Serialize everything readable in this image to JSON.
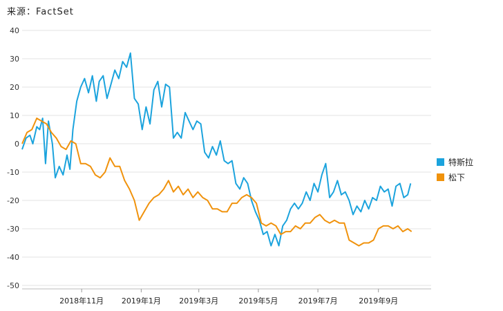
{
  "source": "来源：FactSet",
  "chart_data": {
    "type": "line",
    "source": "来源：FactSet",
    "ylim": [
      -50,
      40
    ],
    "yticks": [
      40,
      30,
      20,
      10,
      0,
      -10,
      -20,
      -30,
      -40,
      -50
    ],
    "xlim": [
      "2018-09-01",
      "2019-10-25"
    ],
    "xticks": [
      {
        "date": "2018-11-01",
        "label": "2018年11月"
      },
      {
        "date": "2019-01-01",
        "label": "2019年1月"
      },
      {
        "date": "2019-03-01",
        "label": "2019年3月"
      },
      {
        "date": "2019-05-01",
        "label": "2019年5月"
      },
      {
        "date": "2019-07-01",
        "label": "2019年7月"
      },
      {
        "date": "2019-09-01",
        "label": "2019年9月"
      }
    ],
    "grid": true,
    "legend_position": "right",
    "series": [
      {
        "name": "特斯拉",
        "color": "#1ba3dd",
        "points": [
          [
            "2018-09-01",
            -2
          ],
          [
            "2018-09-05",
            2
          ],
          [
            "2018-09-09",
            3
          ],
          [
            "2018-09-12",
            0
          ],
          [
            "2018-09-16",
            6
          ],
          [
            "2018-09-19",
            5
          ],
          [
            "2018-09-22",
            9
          ],
          [
            "2018-09-25",
            -7
          ],
          [
            "2018-09-28",
            8
          ],
          [
            "2018-10-02",
            0
          ],
          [
            "2018-10-05",
            -12
          ],
          [
            "2018-10-09",
            -8
          ],
          [
            "2018-10-13",
            -11
          ],
          [
            "2018-10-17",
            -4
          ],
          [
            "2018-10-20",
            -9
          ],
          [
            "2018-10-23",
            5
          ],
          [
            "2018-10-27",
            15
          ],
          [
            "2018-10-31",
            20
          ],
          [
            "2018-11-04",
            23
          ],
          [
            "2018-11-08",
            18
          ],
          [
            "2018-11-12",
            24
          ],
          [
            "2018-11-16",
            15
          ],
          [
            "2018-11-19",
            22
          ],
          [
            "2018-11-23",
            24
          ],
          [
            "2018-11-27",
            16
          ],
          [
            "2018-12-01",
            21
          ],
          [
            "2018-12-05",
            26
          ],
          [
            "2018-12-09",
            23
          ],
          [
            "2018-12-13",
            29
          ],
          [
            "2018-12-17",
            27
          ],
          [
            "2018-12-21",
            32
          ],
          [
            "2018-12-25",
            16
          ],
          [
            "2018-12-29",
            14
          ],
          [
            "2019-01-02",
            5
          ],
          [
            "2019-01-06",
            13
          ],
          [
            "2019-01-10",
            7
          ],
          [
            "2019-01-14",
            19
          ],
          [
            "2019-01-18",
            22
          ],
          [
            "2019-01-22",
            13
          ],
          [
            "2019-01-26",
            21
          ],
          [
            "2019-01-30",
            20
          ],
          [
            "2019-02-03",
            2
          ],
          [
            "2019-02-07",
            4
          ],
          [
            "2019-02-11",
            2
          ],
          [
            "2019-02-15",
            11
          ],
          [
            "2019-02-19",
            8
          ],
          [
            "2019-02-23",
            5
          ],
          [
            "2019-02-27",
            8
          ],
          [
            "2019-03-03",
            7
          ],
          [
            "2019-03-07",
            -3
          ],
          [
            "2019-03-11",
            -5
          ],
          [
            "2019-03-15",
            -1
          ],
          [
            "2019-03-19",
            -4
          ],
          [
            "2019-03-23",
            1
          ],
          [
            "2019-03-27",
            -6
          ],
          [
            "2019-03-31",
            -7
          ],
          [
            "2019-04-04",
            -6
          ],
          [
            "2019-04-08",
            -14
          ],
          [
            "2019-04-12",
            -16
          ],
          [
            "2019-04-16",
            -12
          ],
          [
            "2019-04-20",
            -14
          ],
          [
            "2019-04-24",
            -20
          ],
          [
            "2019-04-28",
            -24
          ],
          [
            "2019-05-02",
            -27
          ],
          [
            "2019-05-06",
            -32
          ],
          [
            "2019-05-10",
            -31
          ],
          [
            "2019-05-14",
            -36
          ],
          [
            "2019-05-18",
            -32
          ],
          [
            "2019-05-22",
            -36
          ],
          [
            "2019-05-26",
            -29
          ],
          [
            "2019-05-30",
            -27
          ],
          [
            "2019-06-03",
            -23
          ],
          [
            "2019-06-07",
            -21
          ],
          [
            "2019-06-11",
            -23
          ],
          [
            "2019-06-15",
            -21
          ],
          [
            "2019-06-19",
            -17
          ],
          [
            "2019-06-23",
            -20
          ],
          [
            "2019-06-27",
            -14
          ],
          [
            "2019-07-01",
            -17
          ],
          [
            "2019-07-05",
            -11
          ],
          [
            "2019-07-09",
            -7
          ],
          [
            "2019-07-13",
            -19
          ],
          [
            "2019-07-17",
            -17
          ],
          [
            "2019-07-21",
            -13
          ],
          [
            "2019-07-25",
            -18
          ],
          [
            "2019-07-29",
            -17
          ],
          [
            "2019-08-02",
            -20
          ],
          [
            "2019-08-06",
            -25
          ],
          [
            "2019-08-10",
            -22
          ],
          [
            "2019-08-14",
            -24
          ],
          [
            "2019-08-18",
            -20
          ],
          [
            "2019-08-22",
            -23
          ],
          [
            "2019-08-26",
            -19
          ],
          [
            "2019-08-30",
            -20
          ],
          [
            "2019-09-03",
            -15
          ],
          [
            "2019-09-07",
            -17
          ],
          [
            "2019-09-11",
            -16
          ],
          [
            "2019-09-15",
            -22
          ],
          [
            "2019-09-19",
            -15
          ],
          [
            "2019-09-23",
            -14
          ],
          [
            "2019-09-27",
            -19
          ],
          [
            "2019-10-01",
            -18
          ],
          [
            "2019-10-04",
            -14
          ]
        ]
      },
      {
        "name": "松下",
        "color": "#f0920c",
        "points": [
          [
            "2018-09-01",
            0
          ],
          [
            "2018-09-06",
            4
          ],
          [
            "2018-09-11",
            5
          ],
          [
            "2018-09-16",
            9
          ],
          [
            "2018-09-21",
            8
          ],
          [
            "2018-09-26",
            7
          ],
          [
            "2018-10-01",
            4
          ],
          [
            "2018-10-06",
            2
          ],
          [
            "2018-10-11",
            -1
          ],
          [
            "2018-10-16",
            -2
          ],
          [
            "2018-10-21",
            1
          ],
          [
            "2018-10-26",
            0
          ],
          [
            "2018-10-31",
            -7
          ],
          [
            "2018-11-05",
            -7
          ],
          [
            "2018-11-10",
            -8
          ],
          [
            "2018-11-15",
            -11
          ],
          [
            "2018-11-20",
            -12
          ],
          [
            "2018-11-25",
            -10
          ],
          [
            "2018-11-30",
            -5
          ],
          [
            "2018-12-05",
            -8
          ],
          [
            "2018-12-10",
            -8
          ],
          [
            "2018-12-15",
            -13
          ],
          [
            "2018-12-20",
            -16
          ],
          [
            "2018-12-25",
            -20
          ],
          [
            "2018-12-30",
            -27
          ],
          [
            "2019-01-04",
            -24
          ],
          [
            "2019-01-09",
            -21
          ],
          [
            "2019-01-14",
            -19
          ],
          [
            "2019-01-19",
            -18
          ],
          [
            "2019-01-24",
            -16
          ],
          [
            "2019-01-29",
            -13
          ],
          [
            "2019-02-03",
            -17
          ],
          [
            "2019-02-08",
            -15
          ],
          [
            "2019-02-13",
            -18
          ],
          [
            "2019-02-18",
            -16
          ],
          [
            "2019-02-23",
            -19
          ],
          [
            "2019-02-28",
            -17
          ],
          [
            "2019-03-05",
            -19
          ],
          [
            "2019-03-10",
            -20
          ],
          [
            "2019-03-15",
            -23
          ],
          [
            "2019-03-20",
            -23
          ],
          [
            "2019-03-25",
            -24
          ],
          [
            "2019-03-30",
            -24
          ],
          [
            "2019-04-04",
            -21
          ],
          [
            "2019-04-09",
            -21
          ],
          [
            "2019-04-14",
            -19
          ],
          [
            "2019-04-19",
            -18
          ],
          [
            "2019-04-24",
            -19
          ],
          [
            "2019-04-29",
            -21
          ],
          [
            "2019-05-04",
            -28
          ],
          [
            "2019-05-09",
            -29
          ],
          [
            "2019-05-14",
            -28
          ],
          [
            "2019-05-19",
            -29
          ],
          [
            "2019-05-24",
            -32
          ],
          [
            "2019-05-29",
            -31
          ],
          [
            "2019-06-03",
            -31
          ],
          [
            "2019-06-08",
            -29
          ],
          [
            "2019-06-13",
            -30
          ],
          [
            "2019-06-18",
            -28
          ],
          [
            "2019-06-23",
            -28
          ],
          [
            "2019-06-28",
            -26
          ],
          [
            "2019-07-03",
            -25
          ],
          [
            "2019-07-08",
            -27
          ],
          [
            "2019-07-13",
            -28
          ],
          [
            "2019-07-18",
            -27
          ],
          [
            "2019-07-23",
            -28
          ],
          [
            "2019-07-28",
            -28
          ],
          [
            "2019-08-02",
            -34
          ],
          [
            "2019-08-07",
            -35
          ],
          [
            "2019-08-12",
            -36
          ],
          [
            "2019-08-17",
            -35
          ],
          [
            "2019-08-22",
            -35
          ],
          [
            "2019-08-27",
            -34
          ],
          [
            "2019-09-01",
            -30
          ],
          [
            "2019-09-06",
            -29
          ],
          [
            "2019-09-11",
            -29
          ],
          [
            "2019-09-16",
            -30
          ],
          [
            "2019-09-21",
            -29
          ],
          [
            "2019-09-26",
            -31
          ],
          [
            "2019-10-01",
            -30
          ],
          [
            "2019-10-05",
            -31
          ]
        ]
      }
    ]
  },
  "legend": {
    "items": [
      {
        "label": "特斯拉",
        "color": "#1ba3dd"
      },
      {
        "label": "松下",
        "color": "#f0920c"
      }
    ]
  }
}
